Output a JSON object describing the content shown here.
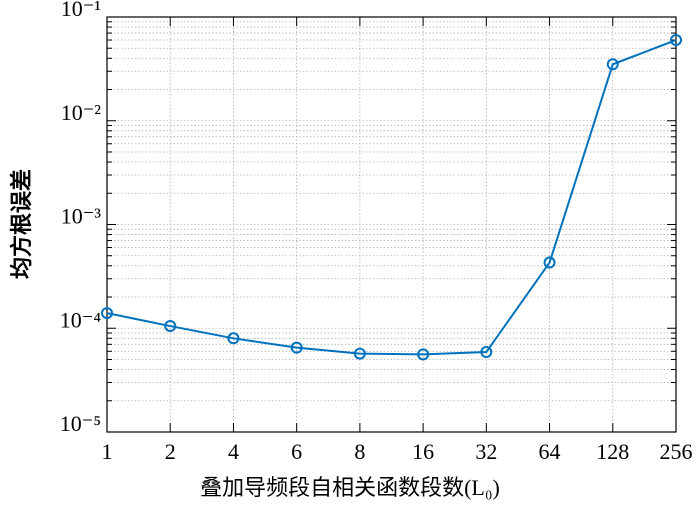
{
  "chart_data": {
    "type": "line",
    "x_label": "叠加导频段自相关函数段数(L₀)",
    "y_label": "均方根误差",
    "categories": [
      "1",
      "2",
      "4",
      "6",
      "8",
      "16",
      "32",
      "64",
      "128",
      "256"
    ],
    "series": [
      {
        "color": "#0072bd",
        "values": [
          0.00014,
          0.000105,
          8e-05,
          6.5e-05,
          5.7e-05,
          5.6e-05,
          5.9e-05,
          0.00043,
          0.035,
          0.06
        ]
      }
    ],
    "ylog": true,
    "ylim": [
      1e-05,
      0.1
    ],
    "yticks": [
      {
        "value": 1e-05,
        "label": "10⁻⁵"
      },
      {
        "value": 0.0001,
        "label": "10⁻⁴"
      },
      {
        "value": 0.001,
        "label": "10⁻³"
      },
      {
        "value": 0.01,
        "label": "10⁻²"
      },
      {
        "value": 0.1,
        "label": "10⁻¹"
      }
    ],
    "grid": true,
    "minor_grid": true,
    "marker": "circle"
  }
}
